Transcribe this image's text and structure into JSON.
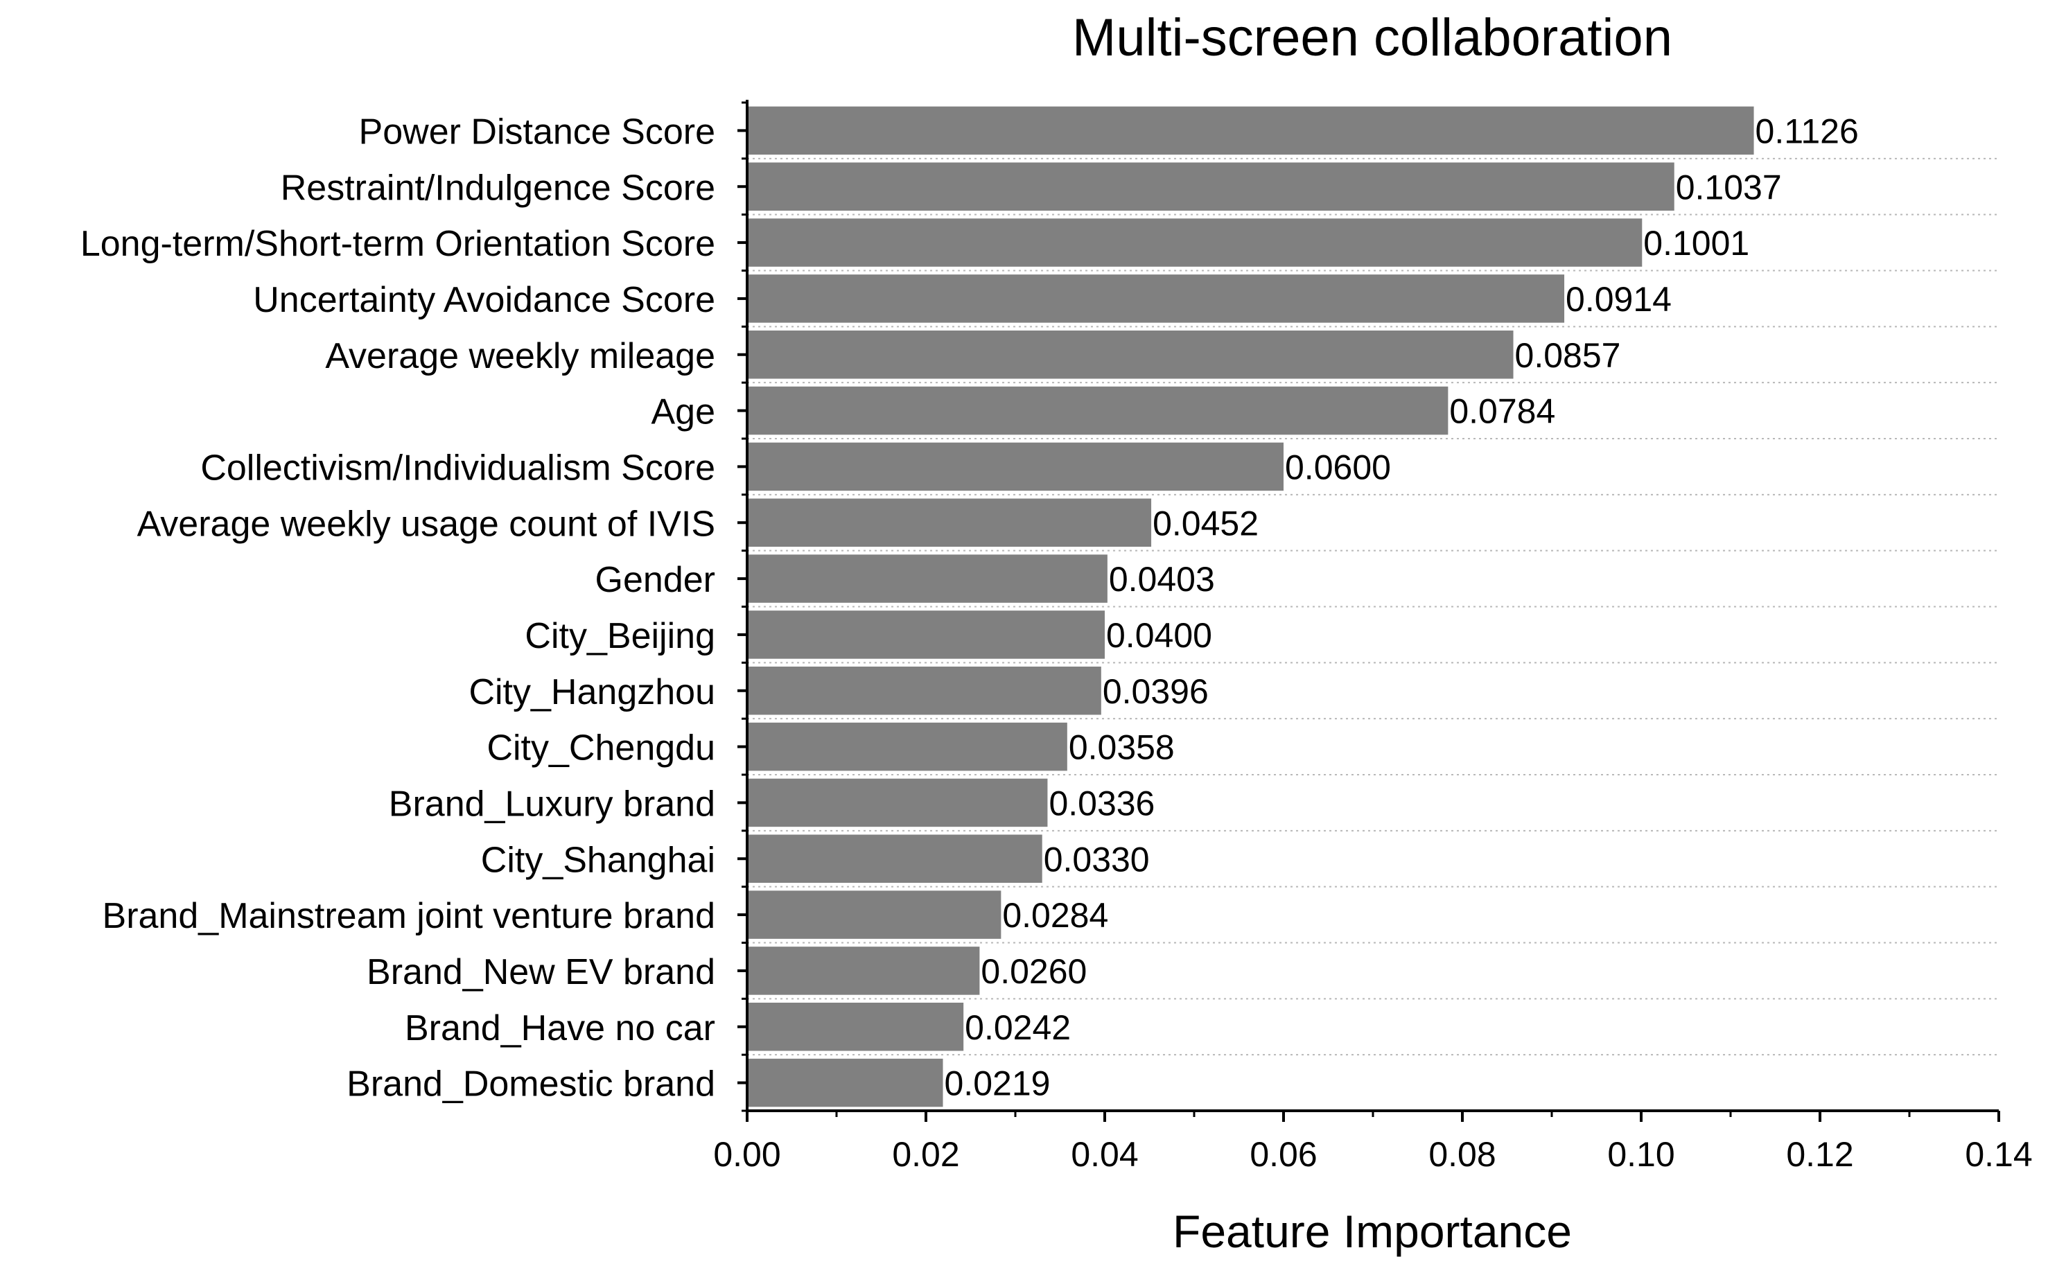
{
  "chart_data": {
    "type": "bar",
    "orientation": "horizontal",
    "title": "Multi-screen collaboration",
    "xlabel": "Feature Importance",
    "ylabel": "",
    "xlim": [
      0,
      0.14
    ],
    "x_ticks": [
      "0.00",
      "0.02",
      "0.04",
      "0.06",
      "0.08",
      "0.10",
      "0.12",
      "0.14"
    ],
    "grid": "horizontal dotted lines between bars",
    "bar_color": "#808080",
    "categories": [
      "Power Distance Score",
      "Restraint/Indulgence Score",
      "Long-term/Short-term Orientation Score",
      "Uncertainty Avoidance Score",
      "Average weekly mileage",
      "Age",
      "Collectivism/Individualism Score",
      "Average weekly usage count of IVIS",
      "Gender",
      "City_Beijing",
      "City_Hangzhou",
      "City_Chengdu",
      "Brand_Luxury brand",
      "City_Shanghai",
      "Brand_Mainstream joint venture brand",
      "Brand_New EV brand",
      "Brand_Have no car",
      "Brand_Domestic brand"
    ],
    "values": [
      0.1126,
      0.1037,
      0.1001,
      0.0914,
      0.0857,
      0.0784,
      0.06,
      0.0452,
      0.0403,
      0.04,
      0.0396,
      0.0358,
      0.0336,
      0.033,
      0.0284,
      0.026,
      0.0242,
      0.0219
    ],
    "value_labels": [
      "0.1126",
      "0.1037",
      "0.1001",
      "0.0914",
      "0.0857",
      "0.0784",
      "0.0600",
      "0.0452",
      "0.0403",
      "0.0400",
      "0.0396",
      "0.0358",
      "0.0336",
      "0.0330",
      "0.0284",
      "0.0260",
      "0.0242",
      "0.0219"
    ]
  }
}
